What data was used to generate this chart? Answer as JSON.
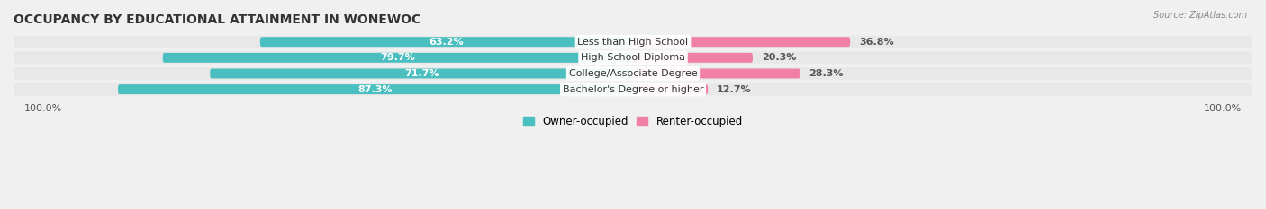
{
  "title": "OCCUPANCY BY EDUCATIONAL ATTAINMENT IN WONEWOC",
  "source": "Source: ZipAtlas.com",
  "categories": [
    "Less than High School",
    "High School Diploma",
    "College/Associate Degree",
    "Bachelor's Degree or higher"
  ],
  "owner_values": [
    63.2,
    79.7,
    71.7,
    87.3
  ],
  "renter_values": [
    36.8,
    20.3,
    28.3,
    12.7
  ],
  "owner_color": "#4BBFBF",
  "renter_color": "#F080A8",
  "bar_bg_color": "#E0E0E0",
  "row_bg_color": "#EFEFEF",
  "owner_label": "Owner-occupied",
  "renter_label": "Renter-occupied",
  "title_fontsize": 10,
  "label_fontsize": 8,
  "value_fontsize": 8,
  "bar_height": 0.62,
  "figsize": [
    14.06,
    2.33
  ],
  "dpi": 100
}
